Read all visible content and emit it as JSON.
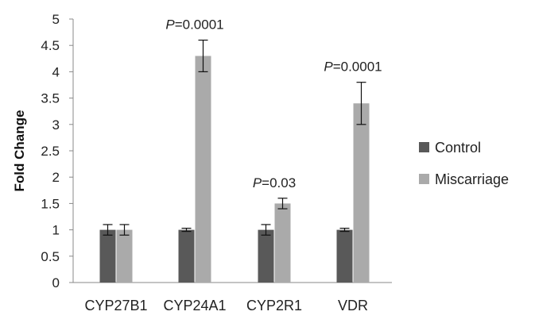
{
  "chart_data": {
    "type": "bar",
    "title": "",
    "xlabel": "",
    "ylabel": "Fold Change",
    "ylim": [
      0,
      5
    ],
    "yticks": [
      0,
      0.5,
      1,
      1.5,
      2,
      2.5,
      3,
      3.5,
      4,
      4.5,
      5
    ],
    "ytick_labels": [
      "0",
      "0.5",
      "1",
      "1.5",
      "2",
      "2.5",
      "3",
      "3.5",
      "4",
      "4.5",
      "5"
    ],
    "grid": false,
    "legend_position": "right",
    "categories": [
      "CYP27B1",
      "CYP24A1",
      "CYP2R1",
      "VDR"
    ],
    "series": [
      {
        "name": "Control",
        "color": "#595959",
        "values": [
          1.0,
          1.0,
          1.0,
          1.0
        ],
        "errors": [
          0.1,
          0.03,
          0.1,
          0.03
        ]
      },
      {
        "name": "Miscarriage",
        "color": "#aaaaaa",
        "values": [
          1.0,
          4.3,
          1.5,
          3.4
        ],
        "errors": [
          0.1,
          0.3,
          0.1,
          0.4
        ]
      }
    ],
    "annotations": [
      {
        "category": "CYP24A1",
        "italic": "P",
        "rest": "=0.0001"
      },
      {
        "category": "CYP2R1",
        "italic": "P",
        "rest": "=0.03"
      },
      {
        "category": "VDR",
        "italic": "P",
        "rest": "=0.0001"
      }
    ]
  }
}
